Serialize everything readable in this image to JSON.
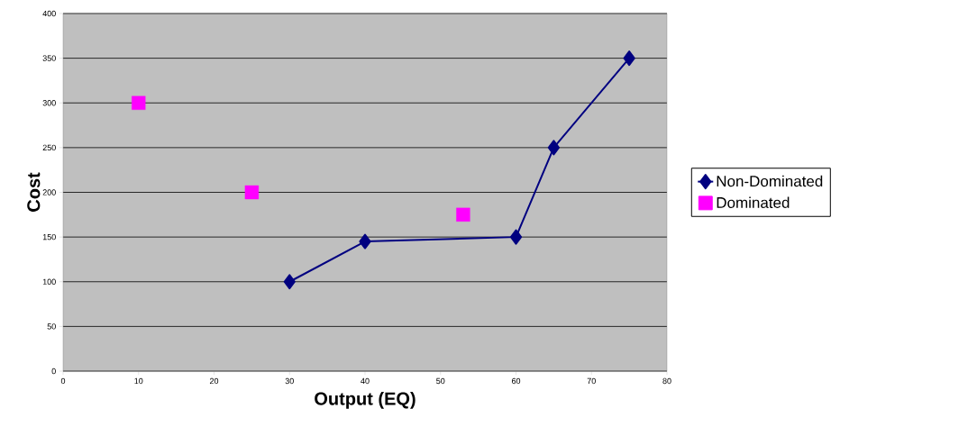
{
  "chart_data": {
    "type": "line",
    "xlabel": "Output (EQ)",
    "ylabel": "Cost",
    "xlim": [
      0,
      80
    ],
    "xticks": [
      0,
      10,
      20,
      30,
      40,
      50,
      60,
      70,
      80
    ],
    "ylim": [
      0,
      400
    ],
    "yticks": [
      0,
      50,
      100,
      150,
      200,
      250,
      300,
      350,
      400
    ],
    "grid": "y",
    "legend": "right",
    "series": [
      {
        "name": "Non-Dominated",
        "color": "#000080",
        "marker": "diamond",
        "x": [
          30,
          40,
          60,
          65,
          75
        ],
        "values": [
          100,
          145,
          150,
          250,
          350
        ]
      },
      {
        "name": "Dominated",
        "type": "scatter",
        "color": "#ff00ff",
        "marker": "square",
        "x": [
          10,
          25,
          53
        ],
        "values": [
          300,
          200,
          175
        ]
      }
    ]
  }
}
